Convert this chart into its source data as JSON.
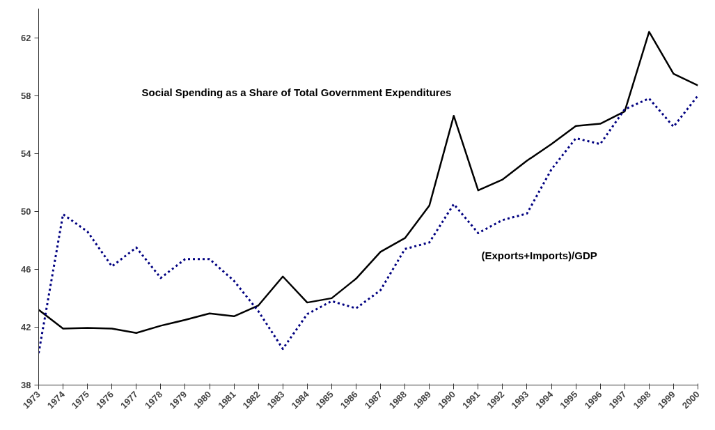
{
  "chart_data": {
    "type": "line",
    "x": [
      1973,
      1974,
      1975,
      1976,
      1977,
      1978,
      1979,
      1980,
      1981,
      1982,
      1983,
      1984,
      1985,
      1986,
      1987,
      1988,
      1989,
      1990,
      1991,
      1992,
      1993,
      1994,
      1995,
      1996,
      1997,
      1998,
      1999,
      2000
    ],
    "series": [
      {
        "color": "#000000",
        "line_style": "solid",
        "values": [
          43.2,
          41.9,
          41.95,
          41.9,
          41.6,
          42.1,
          42.5,
          42.95,
          42.75,
          43.5,
          45.5,
          43.7,
          44.0,
          45.35,
          47.2,
          48.15,
          50.4,
          56.6,
          51.45,
          52.2,
          53.5,
          54.65,
          55.9,
          56.05,
          56.9,
          62.4,
          59.5,
          58.7
        ]
      },
      {
        "color": "#000080",
        "line_style": "dotted",
        "values": [
          40.2,
          49.8,
          48.6,
          46.2,
          47.5,
          45.4,
          46.7,
          46.7,
          45.2,
          43.1,
          40.5,
          42.9,
          43.8,
          43.3,
          44.55,
          47.4,
          47.85,
          50.5,
          48.5,
          49.4,
          49.85,
          52.9,
          55.05,
          54.65,
          57.05,
          57.8,
          55.85,
          58.0
        ]
      }
    ],
    "annotations": [
      "Social Spending as a Share of Total Government Expenditures",
      "(Exports+Imports)/GDP"
    ],
    "xlim": [
      1973,
      2000
    ],
    "xticks": [
      1973,
      1974,
      1975,
      1976,
      1977,
      1978,
      1979,
      1980,
      1981,
      1982,
      1983,
      1984,
      1985,
      1986,
      1987,
      1988,
      1989,
      1990,
      1991,
      1992,
      1993,
      1994,
      1995,
      1996,
      1997,
      1998,
      1999,
      2000
    ],
    "ylim": [
      38,
      64
    ],
    "yticks": [
      38,
      42,
      46,
      50,
      54,
      58,
      62
    ],
    "grid": false,
    "marker": "none"
  }
}
